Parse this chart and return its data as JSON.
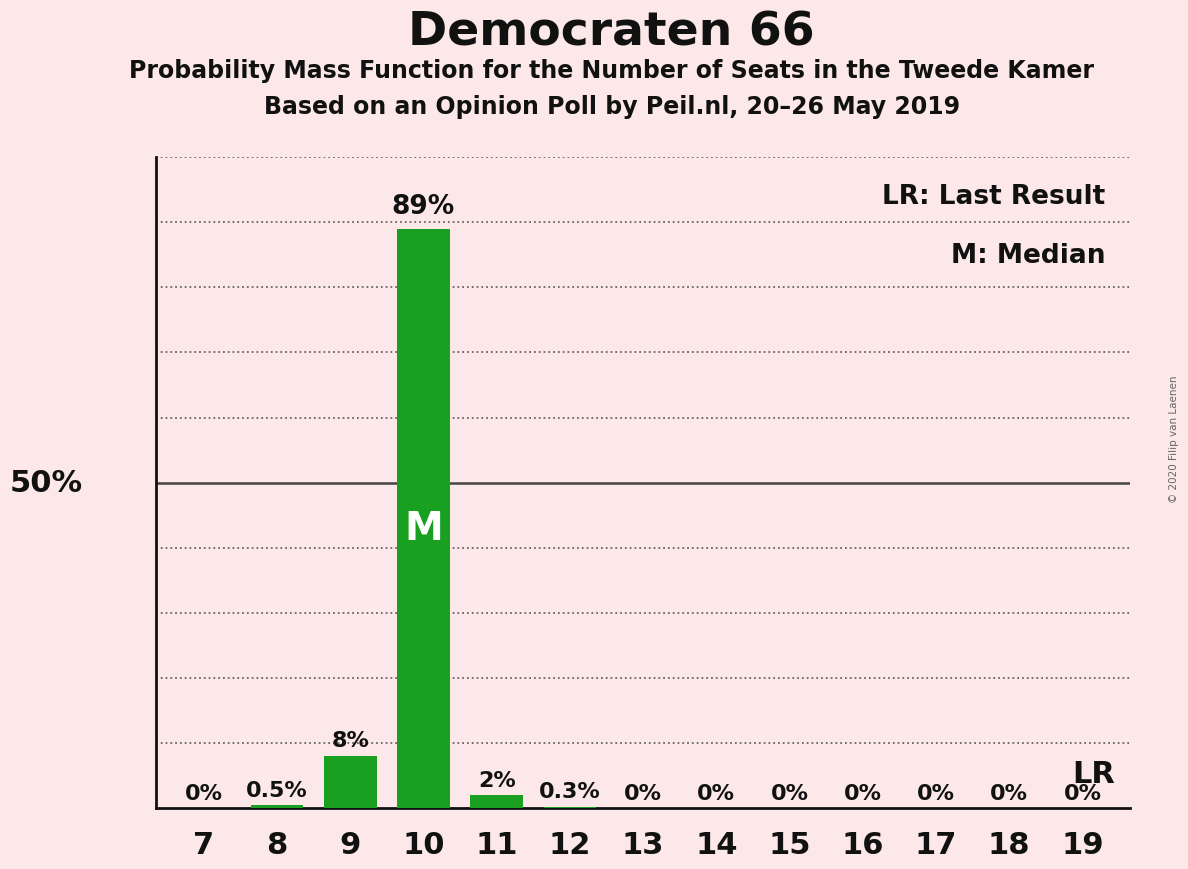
{
  "title": "Democraten 66",
  "subtitle1": "Probability Mass Function for the Number of Seats in the Tweede Kamer",
  "subtitle2": "Based on an Opinion Poll by Peil.nl, 20–26 May 2019",
  "copyright": "© 2020 Filip van Laenen",
  "seats": [
    7,
    8,
    9,
    10,
    11,
    12,
    13,
    14,
    15,
    16,
    17,
    18,
    19
  ],
  "probabilities": [
    0.0,
    0.5,
    8.0,
    89.0,
    2.0,
    0.3,
    0.0,
    0.0,
    0.0,
    0.0,
    0.0,
    0.0,
    0.0
  ],
  "bar_labels": [
    "0%",
    "0.5%",
    "8%",
    "89%",
    "2%",
    "0.3%",
    "0%",
    "0%",
    "0%",
    "0%",
    "0%",
    "0%",
    "0%"
  ],
  "bar_color": "#19a020",
  "background_color": "#fce8e8",
  "median_seat": 10,
  "last_result_seat": 19,
  "legend_lr": "LR: Last Result",
  "legend_m": "M: Median",
  "lr_label": "LR",
  "median_label": "M",
  "ylim": [
    0,
    100
  ],
  "fifty_pct_label": "50%",
  "grid_color": "#444444",
  "title_fontsize": 34,
  "subtitle_fontsize": 17,
  "axis_fontsize": 22,
  "bar_label_fontsize": 16,
  "legend_fontsize": 19,
  "median_fontsize": 28
}
